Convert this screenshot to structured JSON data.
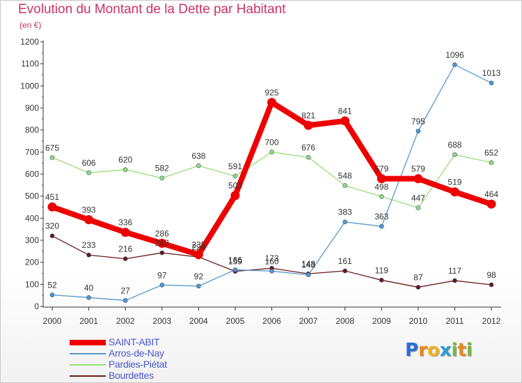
{
  "header": {
    "title": "Evolution du Montant de la Dette par Habitant",
    "subtitle": "(en €)"
  },
  "chart_data": {
    "type": "line",
    "x": [
      "2000",
      "2001",
      "2002",
      "2003",
      "2004",
      "2005",
      "2006",
      "2007",
      "2008",
      "2009",
      "2010",
      "2011",
      "2012"
    ],
    "ylim": [
      0,
      1200
    ],
    "yticks": [
      "0",
      "100",
      "200",
      "300",
      "400",
      "500",
      "600",
      "700",
      "800",
      "900",
      "1000",
      "1100",
      "1200"
    ],
    "grid": false,
    "legend_position": "bottom-left",
    "series": [
      {
        "name": "Bourdettes",
        "color": "#6b1a1a",
        "values": [
          320,
          233,
          216,
          243,
          224,
          159,
          173,
          148,
          161,
          119,
          87,
          117,
          98
        ],
        "labels": [
          "320",
          "233",
          "216",
          "243",
          "224",
          "159",
          "173",
          "148",
          "161",
          "119",
          "87",
          "117",
          "98"
        ]
      },
      {
        "name": "Pardies-Piétat",
        "color": "#99dd77",
        "values": [
          675,
          606,
          620,
          582,
          638,
          591,
          700,
          676,
          548,
          498,
          447,
          688,
          652
        ],
        "labels": [
          "675",
          "606",
          "620",
          "582",
          "638",
          "591",
          "700",
          "676",
          "548",
          "498",
          "447",
          "688",
          "652"
        ]
      },
      {
        "name": "Arros-de-Nay",
        "color": "#5599cc",
        "values": [
          52,
          40,
          27,
          97,
          92,
          166,
          160,
          143,
          383,
          363,
          795,
          1096,
          1013
        ],
        "labels": [
          "52",
          "40",
          "27",
          "97",
          "92",
          "166",
          "160",
          "143",
          "383",
          "363",
          "795",
          "1096",
          "1013"
        ]
      },
      {
        "name": "SAINT-ABIT",
        "color": "#ee0000",
        "values": [
          451,
          393,
          336,
          286,
          235,
          503,
          925,
          821,
          841,
          579,
          579,
          519,
          464
        ],
        "labels": [
          "451",
          "393",
          "336",
          "286",
          "235",
          "503",
          "925",
          "821",
          "841",
          "579",
          "579",
          "519",
          "464"
        ]
      }
    ],
    "legend": [
      {
        "name": "SAINT-ABIT",
        "color": "#ee0000"
      },
      {
        "name": "Arros-de-Nay",
        "color": "#5599cc"
      },
      {
        "name": "Pardies-Piétat",
        "color": "#99dd77"
      },
      {
        "name": "Bourdettes",
        "color": "#6b1a1a"
      }
    ]
  },
  "logo": {
    "letters": [
      "P",
      "r",
      "o",
      "x",
      "i",
      "t",
      "i"
    ],
    "colors": [
      "#2a6fd6",
      "#e8891d",
      "#f0b21a",
      "#2a9bd6",
      "#7ab83a",
      "#e8891d",
      "#7ab83a"
    ]
  }
}
